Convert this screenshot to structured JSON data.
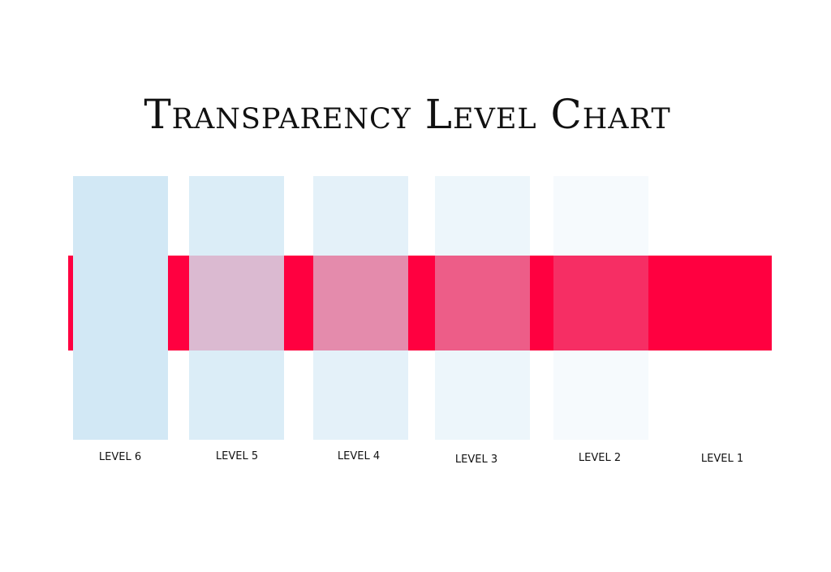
{
  "title": "Transparency Level Chart",
  "stripe_color": "#ff0040",
  "swatch_color": "#d2e8f5",
  "levels": [
    {
      "label": "LEVEL 6",
      "opacity": 1.0
    },
    {
      "label": "LEVEL 5",
      "opacity": 0.8
    },
    {
      "label": "LEVEL 4",
      "opacity": 0.6
    },
    {
      "label": "LEVEL 3",
      "opacity": 0.4
    },
    {
      "label": "LEVEL 2",
      "opacity": 0.2
    },
    {
      "label": "LEVEL 1",
      "opacity": 0.0
    }
  ]
}
